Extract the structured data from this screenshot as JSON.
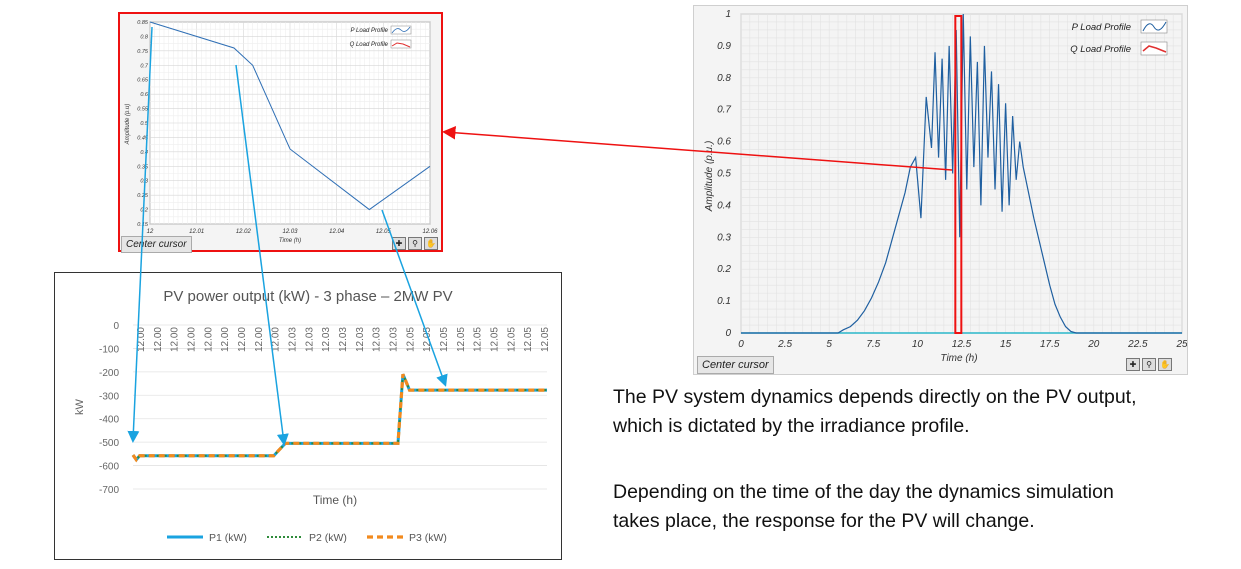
{
  "zoom_chart": {
    "ylabel": "Amplitude (p.u)",
    "xlabel": "Time (h)",
    "cursor_label": "Center cursor",
    "x_ticks": [
      "12",
      "12.01",
      "12.02",
      "12.03",
      "12.04",
      "12.05",
      "12.06"
    ],
    "y_ticks": [
      "0.85",
      "0.8",
      "0.75",
      "0.7",
      "0.65",
      "0.6",
      "0.55",
      "0.5",
      "0.45",
      "0.4",
      "0.35",
      "0.3",
      "0.25",
      "0.2",
      "0.15"
    ],
    "legend": [
      "P Load Profile",
      "Q Load Profile"
    ],
    "colors": {
      "p": "#2f6fb5",
      "q": "#e03030",
      "frame": "#e11111"
    }
  },
  "full_chart": {
    "ylabel": "Amplitude (p.u.)",
    "xlabel": "Time (h)",
    "cursor_label": "Center cursor",
    "x_ticks": [
      "0",
      "2.5",
      "5",
      "7.5",
      "10",
      "12.5",
      "15",
      "17.5",
      "20",
      "22.5",
      "25"
    ],
    "y_ticks": [
      "0",
      "0.1",
      "0.2",
      "0.3",
      "0.4",
      "0.5",
      "0.6",
      "0.7",
      "0.8",
      "0.9",
      "1"
    ],
    "legend": [
      "P Load Profile",
      "Q Load Profile"
    ]
  },
  "pv_chart": {
    "title": "PV power output (kW) - 3 phase – 2MW PV",
    "ylabel": "kW",
    "xlabel": "Time (h)",
    "y_ticks": [
      "0",
      "-100",
      "-200",
      "-300",
      "-400",
      "-500",
      "-600",
      "-700"
    ],
    "x_ticks": [
      "12.00",
      "12.00",
      "12.00",
      "12.00",
      "12.00",
      "12.00",
      "12.00",
      "12.00",
      "12.00",
      "12.03",
      "12.03",
      "12.03",
      "12.03",
      "12.03",
      "12.03",
      "12.03",
      "12.05",
      "12.05",
      "12.05",
      "12.05",
      "12.05",
      "12.05",
      "12.05",
      "12.05",
      "12.05"
    ],
    "legend": [
      "P1 (kW)",
      "P2 (kW)",
      "P3 (kW)"
    ],
    "colors": {
      "p1": "#1aa3e0",
      "p2": "#2e8b3a",
      "p3": "#f28a1e"
    }
  },
  "description": {
    "para1_line1": "The PV system dynamics depends directly on the PV output,",
    "para1_line2": "which is dictated by the irradiance profile.",
    "para2_line1": "Depending on the time of the day the dynamics simulation",
    "para2_line2": "takes place, the response for the PV will change."
  },
  "chart_data": [
    {
      "type": "line",
      "title": "",
      "xlabel": "Time (h)",
      "ylabel": "Amplitude (p.u)",
      "xlim": [
        12,
        12.06
      ],
      "ylim": [
        0.15,
        0.85
      ],
      "series": [
        {
          "name": "P Load Profile",
          "x": [
            12.0,
            12.018,
            12.022,
            12.03,
            12.047,
            12.06
          ],
          "y": [
            0.85,
            0.76,
            0.7,
            0.41,
            0.2,
            0.35
          ]
        },
        {
          "name": "Q Load Profile",
          "x": [
            12.0,
            12.06
          ],
          "y": [
            0.15,
            0.15
          ]
        }
      ]
    },
    {
      "type": "line",
      "title": "",
      "xlabel": "Time (h)",
      "ylabel": "Amplitude (p.u.)",
      "xlim": [
        0,
        25
      ],
      "ylim": [
        0,
        1
      ],
      "series": [
        {
          "name": "P Load Profile",
          "x": [
            0,
            5.5,
            5.8,
            6.2,
            6.6,
            7.0,
            7.4,
            7.8,
            8.2,
            8.6,
            9.0,
            9.3,
            9.6,
            9.9,
            10.2,
            10.5,
            10.8,
            11.0,
            11.2,
            11.4,
            11.6,
            11.8,
            12.0,
            12.2,
            12.4,
            12.6,
            12.8,
            13.0,
            13.2,
            13.4,
            13.6,
            13.8,
            14.0,
            14.2,
            14.4,
            14.6,
            14.8,
            15.0,
            15.2,
            15.4,
            15.6,
            15.8,
            16.0,
            16.3,
            16.6,
            16.9,
            17.2,
            17.5,
            17.8,
            18.1,
            18.4,
            18.7,
            19.0,
            25
          ],
          "y": [
            0,
            0,
            0.01,
            0.02,
            0.04,
            0.07,
            0.11,
            0.16,
            0.22,
            0.3,
            0.38,
            0.44,
            0.52,
            0.55,
            0.36,
            0.74,
            0.58,
            0.88,
            0.55,
            0.86,
            0.48,
            0.9,
            0.5,
            0.95,
            0.3,
            1.0,
            0.45,
            0.93,
            0.52,
            0.85,
            0.4,
            0.9,
            0.55,
            0.82,
            0.45,
            0.78,
            0.38,
            0.72,
            0.4,
            0.68,
            0.48,
            0.6,
            0.52,
            0.44,
            0.36,
            0.29,
            0.22,
            0.15,
            0.09,
            0.05,
            0.02,
            0.005,
            0,
            0
          ]
        },
        {
          "name": "Q Load Profile",
          "x": [
            0,
            25
          ],
          "y": [
            0,
            0
          ]
        }
      ]
    },
    {
      "type": "line",
      "title": "PV power output (kW) - 3 phase – 2MW PV",
      "xlabel": "Time (h)",
      "ylabel": "kW",
      "ylim": [
        -700,
        0
      ],
      "series": [
        {
          "name": "P1 (kW)",
          "x": [
            0,
            0.2,
            0.4,
            8.5,
            8.8,
            9.2,
            16,
            16.3,
            16.7,
            25
          ],
          "y": [
            -555,
            -575,
            -558,
            -558,
            -535,
            -505,
            -505,
            -210,
            -278,
            -278
          ]
        },
        {
          "name": "P2 (kW)",
          "x": [
            0,
            0.2,
            0.4,
            8.5,
            8.8,
            9.2,
            16,
            16.3,
            16.7,
            25
          ],
          "y": [
            -555,
            -575,
            -558,
            -558,
            -535,
            -505,
            -505,
            -210,
            -278,
            -278
          ]
        },
        {
          "name": "P3 (kW)",
          "x": [
            0,
            0.2,
            0.4,
            8.5,
            8.8,
            9.2,
            16,
            16.3,
            16.7,
            25
          ],
          "y": [
            -555,
            -575,
            -558,
            -558,
            -535,
            -505,
            -505,
            -210,
            -278,
            -278
          ]
        }
      ]
    }
  ]
}
